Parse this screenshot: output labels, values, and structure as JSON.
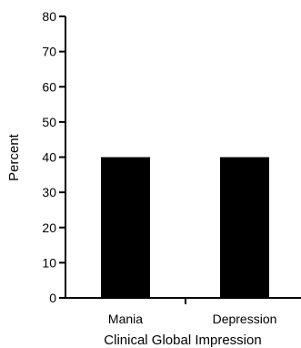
{
  "chart_data": {
    "type": "bar",
    "categories": [
      "Mania",
      "Depression"
    ],
    "values": [
      40,
      40
    ],
    "xlabel": "Clinical Global Impression",
    "ylabel": "Percent",
    "ylim": [
      0,
      80
    ],
    "yticks": [
      0,
      10,
      20,
      30,
      40,
      50,
      60,
      70,
      80
    ],
    "grid": false,
    "legend": "none",
    "bar_color": "#000000"
  }
}
